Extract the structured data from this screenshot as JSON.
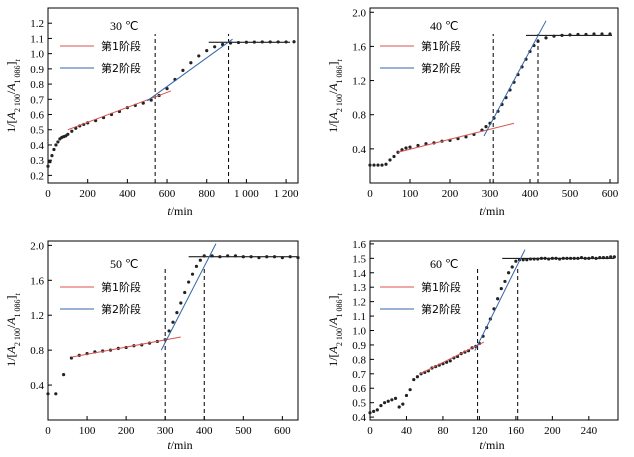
{
  "chart_data": [
    {
      "type": "scatter",
      "title": "30 ℃",
      "xlabel_var": "t",
      "xlabel_unit": "/min",
      "ylabel_prefix": "1/[",
      "ylabel_var1": "A",
      "ylabel_sub1": "2 100",
      "ylabel_sep": "/",
      "ylabel_var2": "A",
      "ylabel_sub2": "1 086",
      "ylabel_suffix": "]",
      "ylabel_t": "t",
      "xlim": [
        0,
        1260
      ],
      "ylim": [
        0.15,
        1.3
      ],
      "xticks": [
        0,
        200,
        400,
        600,
        800,
        1000,
        1200
      ],
      "xtick_labels": [
        "0",
        "200",
        "400",
        "600",
        "800",
        "1 000",
        "1 200"
      ],
      "yticks": [
        0.2,
        0.3,
        0.4,
        0.5,
        0.6,
        0.7,
        0.8,
        0.9,
        1.0,
        1.1,
        1.2
      ],
      "ytick_labels": [
        "0.2",
        "0.3",
        "0.4",
        "0.5",
        "0.6",
        "0.7",
        "0.8",
        "0.9",
        "1.0",
        "1.1",
        "1.2"
      ],
      "legend": [
        "第1阶段",
        "第2阶段"
      ],
      "legend_placement": "upper-left",
      "stage1_line": {
        "x": [
          100,
          620
        ],
        "y": [
          0.5,
          0.755
        ]
      },
      "stage2_line": {
        "x": [
          500,
          930
        ],
        "y": [
          0.69,
          1.095
        ]
      },
      "plateau_line": {
        "x": [
          810,
          1220
        ],
        "y": [
          1.075,
          1.075
        ]
      },
      "vlines": [
        540,
        910
      ],
      "series": [
        {
          "x": [
            0,
            10,
            20,
            30,
            40,
            50,
            60,
            70,
            80,
            90,
            100,
            120,
            140,
            160,
            180,
            200,
            240,
            280,
            320,
            360,
            400,
            440,
            480,
            520,
            560,
            600,
            640,
            680,
            720,
            760,
            800,
            840,
            880,
            920,
            960,
            1000,
            1040,
            1080,
            1120,
            1160,
            1200,
            1240
          ],
          "y": [
            0.26,
            0.29,
            0.33,
            0.37,
            0.4,
            0.42,
            0.44,
            0.45,
            0.455,
            0.46,
            0.47,
            0.49,
            0.51,
            0.525,
            0.535,
            0.545,
            0.56,
            0.58,
            0.6,
            0.62,
            0.645,
            0.66,
            0.675,
            0.695,
            0.725,
            0.77,
            0.83,
            0.89,
            0.94,
            0.985,
            1.02,
            1.045,
            1.06,
            1.07,
            1.073,
            1.075,
            1.076,
            1.077,
            1.077,
            1.077,
            1.077,
            1.078
          ]
        }
      ]
    },
    {
      "type": "scatter",
      "title": "40 ℃",
      "xlabel_var": "t",
      "xlabel_unit": "/min",
      "ylabel_prefix": "1/[",
      "ylabel_var1": "A",
      "ylabel_sub1": "2 100",
      "ylabel_sep": "/",
      "ylabel_var2": "A",
      "ylabel_sub2": "1 086",
      "ylabel_suffix": "]",
      "ylabel_t": "t",
      "xlim": [
        0,
        620
      ],
      "ylim": [
        0.0,
        2.05
      ],
      "xticks": [
        0,
        100,
        200,
        300,
        400,
        500,
        600
      ],
      "xtick_labels": [
        "0",
        "100",
        "200",
        "300",
        "400",
        "500",
        "600"
      ],
      "yticks": [
        0.4,
        0.8,
        1.2,
        1.6,
        2.0
      ],
      "ytick_labels": [
        "0.4",
        "0.8",
        "1.2",
        "1.6",
        "2.0"
      ],
      "legend": [
        "第1阶段",
        "第2阶段"
      ],
      "legend_placement": "upper-left",
      "stage1_line": {
        "x": [
          70,
          360
        ],
        "y": [
          0.36,
          0.7
        ]
      },
      "stage2_line": {
        "x": [
          285,
          440
        ],
        "y": [
          0.55,
          1.9
        ]
      },
      "plateau_line": {
        "x": [
          390,
          605
        ],
        "y": [
          1.73,
          1.73
        ]
      },
      "vlines": [
        308,
        420
      ],
      "series": [
        {
          "x": [
            0,
            10,
            20,
            30,
            40,
            50,
            60,
            70,
            80,
            90,
            100,
            120,
            140,
            160,
            180,
            200,
            220,
            240,
            260,
            280,
            290,
            300,
            310,
            320,
            330,
            340,
            350,
            360,
            370,
            380,
            390,
            400,
            410,
            420,
            440,
            460,
            480,
            500,
            520,
            540,
            560,
            580,
            600
          ],
          "y": [
            0.21,
            0.21,
            0.21,
            0.21,
            0.22,
            0.27,
            0.31,
            0.36,
            0.39,
            0.41,
            0.42,
            0.44,
            0.46,
            0.47,
            0.49,
            0.5,
            0.52,
            0.54,
            0.57,
            0.62,
            0.66,
            0.7,
            0.76,
            0.84,
            0.92,
            1.0,
            1.09,
            1.18,
            1.27,
            1.36,
            1.45,
            1.54,
            1.61,
            1.66,
            1.7,
            1.72,
            1.73,
            1.735,
            1.74,
            1.74,
            1.745,
            1.745,
            1.745
          ]
        }
      ]
    },
    {
      "type": "scatter",
      "title": "50 ℃",
      "xlabel_var": "t",
      "xlabel_unit": "/min",
      "ylabel_prefix": "1/[",
      "ylabel_var1": "A",
      "ylabel_sub1": "2 100",
      "ylabel_sep": "/",
      "ylabel_var2": "A",
      "ylabel_sub2": "1 086",
      "ylabel_suffix": "]",
      "ylabel_t": "t",
      "xlim": [
        0,
        640
      ],
      "ylim": [
        0.0,
        2.05
      ],
      "xticks": [
        0,
        100,
        200,
        300,
        400,
        500,
        600
      ],
      "xtick_labels": [
        "0",
        "100",
        "200",
        "300",
        "400",
        "500",
        "600"
      ],
      "yticks": [
        0.4,
        0.8,
        1.2,
        1.6,
        2.0
      ],
      "ytick_labels": [
        "0.4",
        "0.8",
        "1.2",
        "1.6",
        "2.0"
      ],
      "legend": [
        "第1阶段",
        "第2阶段"
      ],
      "legend_placement": "upper-left",
      "stage1_line": {
        "x": [
          60,
          340
        ],
        "y": [
          0.72,
          0.95
        ]
      },
      "stage2_line": {
        "x": [
          290,
          430
        ],
        "y": [
          0.8,
          2.02
        ]
      },
      "plateau_line": {
        "x": [
          360,
          640
        ],
        "y": [
          1.87,
          1.87
        ]
      },
      "vlines": [
        300,
        400
      ],
      "series": [
        {
          "x": [
            0,
            20,
            40,
            60,
            80,
            100,
            120,
            140,
            160,
            180,
            200,
            220,
            240,
            260,
            280,
            300,
            310,
            320,
            330,
            340,
            350,
            360,
            370,
            380,
            390,
            400,
            420,
            440,
            460,
            480,
            500,
            520,
            540,
            560,
            580,
            600,
            620,
            640
          ],
          "y": [
            0.3,
            0.3,
            0.52,
            0.71,
            0.74,
            0.76,
            0.78,
            0.79,
            0.8,
            0.82,
            0.83,
            0.85,
            0.86,
            0.88,
            0.9,
            0.92,
            1.02,
            1.12,
            1.23,
            1.34,
            1.46,
            1.58,
            1.67,
            1.76,
            1.83,
            1.88,
            1.88,
            1.87,
            1.88,
            1.88,
            1.87,
            1.87,
            1.86,
            1.87,
            1.87,
            1.86,
            1.87,
            1.86
          ]
        }
      ]
    },
    {
      "type": "scatter",
      "title": "60 ℃",
      "xlabel_var": "t",
      "xlabel_unit": "/min",
      "ylabel_prefix": "1/[",
      "ylabel_var1": "A",
      "ylabel_sub1": "2 100",
      "ylabel_sep": "/",
      "ylabel_var2": "A",
      "ylabel_sub2": "1 086",
      "ylabel_suffix": "]",
      "ylabel_t": "t",
      "xlim": [
        0,
        272
      ],
      "ylim": [
        0.38,
        1.62
      ],
      "xticks": [
        0,
        40,
        80,
        120,
        160,
        200,
        240
      ],
      "xtick_labels": [
        "0",
        "40",
        "80",
        "120",
        "160",
        "200",
        "240"
      ],
      "yticks": [
        0.4,
        0.5,
        0.6,
        0.7,
        0.8,
        0.9,
        1.0,
        1.1,
        1.2,
        1.3,
        1.4,
        1.5,
        1.6
      ],
      "ytick_labels": [
        "0.4",
        "0.5",
        "0.6",
        "0.7",
        "0.8",
        "0.9",
        "1.0",
        "1.1",
        "1.2",
        "1.3",
        "1.4",
        "1.5",
        "1.6"
      ],
      "legend": [
        "第1阶段",
        "第2阶段"
      ],
      "legend_placement": "upper-left",
      "stage1_line": {
        "x": [
          55,
          125
        ],
        "y": [
          0.7,
          0.92
        ]
      },
      "stage2_line": {
        "x": [
          115,
          170
        ],
        "y": [
          0.86,
          1.56
        ]
      },
      "plateau_line": {
        "x": [
          145,
          268
        ],
        "y": [
          1.5,
          1.5
        ]
      },
      "vlines": [
        118,
        162
      ],
      "series": [
        {
          "x": [
            0,
            4,
            8,
            12,
            16,
            20,
            24,
            28,
            32,
            36,
            40,
            44,
            48,
            52,
            56,
            60,
            64,
            68,
            72,
            76,
            80,
            84,
            88,
            92,
            96,
            100,
            104,
            108,
            112,
            116,
            120,
            124,
            128,
            132,
            136,
            140,
            144,
            148,
            152,
            156,
            160,
            164,
            168,
            172,
            176,
            180,
            184,
            188,
            192,
            196,
            200,
            204,
            208,
            212,
            216,
            220,
            224,
            228,
            232,
            236,
            240,
            244,
            248,
            252,
            256,
            260,
            264,
            268
          ],
          "y": [
            0.43,
            0.44,
            0.45,
            0.48,
            0.5,
            0.51,
            0.52,
            0.53,
            0.47,
            0.49,
            0.55,
            0.59,
            0.66,
            0.68,
            0.7,
            0.71,
            0.72,
            0.74,
            0.75,
            0.76,
            0.77,
            0.78,
            0.79,
            0.81,
            0.82,
            0.84,
            0.85,
            0.86,
            0.88,
            0.89,
            0.91,
            0.96,
            1.02,
            1.08,
            1.15,
            1.22,
            1.29,
            1.34,
            1.4,
            1.44,
            1.48,
            1.49,
            1.49,
            1.49,
            1.495,
            1.495,
            1.495,
            1.5,
            1.5,
            1.495,
            1.5,
            1.5,
            1.495,
            1.5,
            1.5,
            1.5,
            1.5,
            1.5,
            1.505,
            1.5,
            1.5,
            1.505,
            1.5,
            1.505,
            1.505,
            1.505,
            1.51,
            1.51
          ]
        }
      ]
    }
  ]
}
